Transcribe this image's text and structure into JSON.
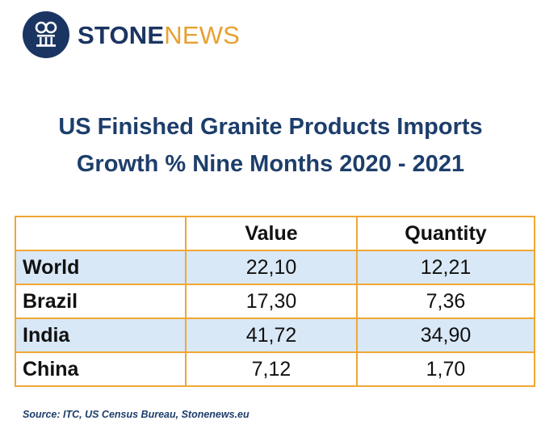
{
  "brand": {
    "name_part1": "STONE",
    "name_part2": "NEWS",
    "colors": {
      "navy": "#1b3563",
      "orange": "#e8a030"
    }
  },
  "title": {
    "line1": "US Finished Granite Products Imports",
    "line2": "Growth % Nine Months 2020 - 2021"
  },
  "chart_data": {
    "type": "table",
    "title": "US Finished Granite Products Imports Growth % Nine Months 2020 - 2021",
    "columns": [
      "",
      "Value",
      "Quantity"
    ],
    "rows": [
      {
        "label": "World",
        "value": "22,10",
        "quantity": "12,21"
      },
      {
        "label": "Brazil",
        "value": "17,30",
        "quantity": "7,36"
      },
      {
        "label": "India",
        "value": "41,72",
        "quantity": "34,90"
      },
      {
        "label": "China",
        "value": "7,12",
        "quantity": "1,70"
      }
    ]
  },
  "source": "Source: ITC, US Census Bureau, Stonenews.eu",
  "colors": {
    "border": "#f0a733",
    "row_shade": "#d9e8f6",
    "title": "#1d3e6b"
  }
}
